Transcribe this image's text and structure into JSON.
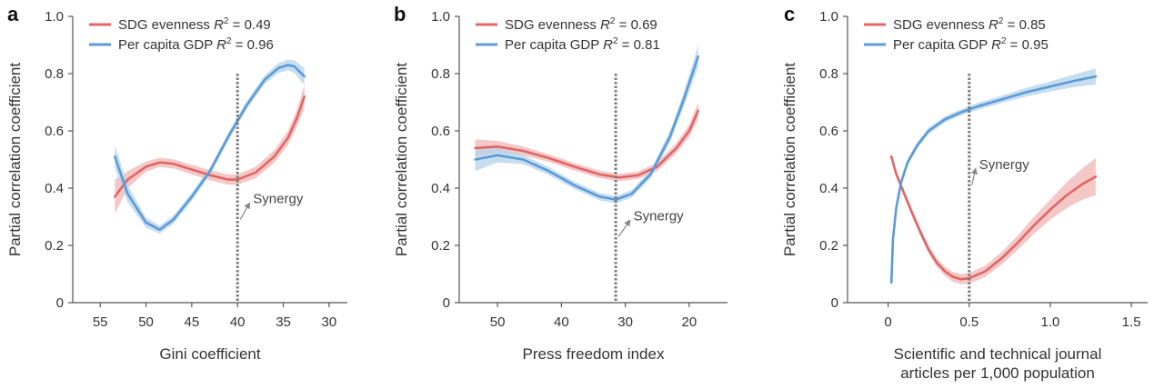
{
  "chart_data": [
    {
      "type": "line",
      "panel": "a",
      "xlabel": [
        "Gini coefficient"
      ],
      "ylabel": "Partial correlation coefficient",
      "xlim": [
        58,
        28
      ],
      "ylim": [
        0,
        1.0
      ],
      "xticks": [
        55,
        50,
        45,
        40,
        35,
        30
      ],
      "yticks": [
        0,
        0.2,
        0.4,
        0.6,
        0.8,
        1.0
      ],
      "reference_x": 40,
      "annotation": {
        "text": "Synergy",
        "x": 38.5,
        "y": 0.36
      },
      "series": [
        {
          "name": "SDG evenness",
          "r2": "0.49",
          "color": "#e06666",
          "band_color": "#f2b5b5",
          "x": [
            53.4,
            52,
            50,
            48.5,
            47,
            45,
            43,
            41,
            40,
            38,
            36,
            34.5,
            33.5,
            32.7
          ],
          "y": [
            0.37,
            0.43,
            0.475,
            0.49,
            0.485,
            0.465,
            0.445,
            0.43,
            0.43,
            0.455,
            0.51,
            0.575,
            0.645,
            0.72
          ],
          "band": [
            0.06,
            0.03,
            0.018,
            0.016,
            0.016,
            0.017,
            0.018,
            0.018,
            0.018,
            0.02,
            0.022,
            0.025,
            0.03,
            0.04
          ]
        },
        {
          "name": "Per capita GDP",
          "r2": "0.96",
          "color": "#5b9bd5",
          "band_color": "#b4d3ec",
          "x": [
            53.4,
            52,
            50,
            48.5,
            47,
            45,
            43,
            41,
            39,
            37,
            35.5,
            34.5,
            33.8,
            32.7
          ],
          "y": [
            0.51,
            0.38,
            0.28,
            0.255,
            0.29,
            0.37,
            0.46,
            0.58,
            0.69,
            0.78,
            0.82,
            0.83,
            0.825,
            0.79
          ],
          "band": [
            0.04,
            0.03,
            0.018,
            0.014,
            0.014,
            0.014,
            0.014,
            0.014,
            0.014,
            0.015,
            0.017,
            0.019,
            0.022,
            0.03
          ]
        }
      ]
    },
    {
      "type": "line",
      "panel": "b",
      "xlabel": [
        "Press freedom index"
      ],
      "ylabel": "Partial correlation coefficient",
      "xlim": [
        56,
        14
      ],
      "ylim": [
        0,
        1.0
      ],
      "xticks": [
        50,
        40,
        30,
        20
      ],
      "yticks": [
        0,
        0.2,
        0.4,
        0.6,
        0.8,
        1.0
      ],
      "reference_x": 31.5,
      "annotation": {
        "text": "Synergy",
        "x": 29,
        "y": 0.3
      },
      "series": [
        {
          "name": "SDG evenness",
          "r2": "0.69",
          "color": "#e06666",
          "band_color": "#f2b5b5",
          "x": [
            53.5,
            50,
            46,
            42,
            38,
            34,
            31,
            28,
            25,
            22,
            20,
            18.6
          ],
          "y": [
            0.54,
            0.545,
            0.53,
            0.505,
            0.475,
            0.448,
            0.437,
            0.445,
            0.475,
            0.54,
            0.6,
            0.67
          ],
          "band": [
            0.03,
            0.02,
            0.015,
            0.013,
            0.013,
            0.013,
            0.013,
            0.013,
            0.015,
            0.018,
            0.022,
            0.03
          ]
        },
        {
          "name": "Per capita GDP",
          "r2": "0.81",
          "color": "#5b9bd5",
          "band_color": "#b4d3ec",
          "x": [
            53.5,
            50,
            46,
            42,
            38,
            34,
            31.5,
            29,
            26,
            23,
            21,
            19.5,
            18.6
          ],
          "y": [
            0.5,
            0.515,
            0.5,
            0.46,
            0.41,
            0.37,
            0.36,
            0.38,
            0.45,
            0.58,
            0.7,
            0.8,
            0.86
          ],
          "band": [
            0.04,
            0.025,
            0.016,
            0.014,
            0.013,
            0.013,
            0.013,
            0.013,
            0.015,
            0.02,
            0.025,
            0.032,
            0.04
          ]
        }
      ]
    },
    {
      "type": "line",
      "panel": "c",
      "xlabel": [
        "Scientific and technical journal",
        "articles per 1,000 population"
      ],
      "ylabel": "Partial correlation coefficient",
      "xlim": [
        -0.25,
        1.6
      ],
      "ylim": [
        0,
        1.0
      ],
      "xticks": [
        0,
        0.5,
        1.0,
        1.5
      ],
      "xtick_labels": [
        "0",
        "0.5",
        "1.0",
        "1.5"
      ],
      "yticks": [
        0,
        0.2,
        0.4,
        0.6,
        0.8,
        1.0
      ],
      "reference_x": 0.5,
      "annotation": {
        "text": "Synergy",
        "x": 0.55,
        "y": 0.48
      },
      "series": [
        {
          "name": "SDG evenness",
          "r2": "0.85",
          "color": "#e06666",
          "band_color": "#f2b5b5",
          "x": [
            0.02,
            0.05,
            0.1,
            0.15,
            0.2,
            0.25,
            0.3,
            0.35,
            0.4,
            0.45,
            0.5,
            0.6,
            0.7,
            0.8,
            0.9,
            1.0,
            1.1,
            1.2,
            1.28
          ],
          "y": [
            0.51,
            0.45,
            0.38,
            0.31,
            0.245,
            0.185,
            0.14,
            0.11,
            0.09,
            0.082,
            0.085,
            0.11,
            0.155,
            0.21,
            0.27,
            0.325,
            0.375,
            0.415,
            0.44
          ],
          "band": [
            0.012,
            0.012,
            0.012,
            0.012,
            0.013,
            0.014,
            0.015,
            0.016,
            0.017,
            0.018,
            0.019,
            0.02,
            0.022,
            0.025,
            0.03,
            0.035,
            0.045,
            0.055,
            0.065
          ]
        },
        {
          "name": "Per capita GDP",
          "r2": "0.95",
          "color": "#5b9bd5",
          "band_color": "#b4d3ec",
          "x": [
            0.02,
            0.03,
            0.05,
            0.08,
            0.12,
            0.18,
            0.25,
            0.35,
            0.45,
            0.55,
            0.7,
            0.85,
            1.0,
            1.15,
            1.28
          ],
          "y": [
            0.07,
            0.22,
            0.33,
            0.42,
            0.49,
            0.55,
            0.6,
            0.64,
            0.665,
            0.685,
            0.71,
            0.735,
            0.755,
            0.775,
            0.79
          ],
          "band": [
            0.012,
            0.012,
            0.012,
            0.011,
            0.011,
            0.011,
            0.011,
            0.011,
            0.011,
            0.012,
            0.013,
            0.015,
            0.018,
            0.022,
            0.028
          ]
        }
      ]
    }
  ]
}
